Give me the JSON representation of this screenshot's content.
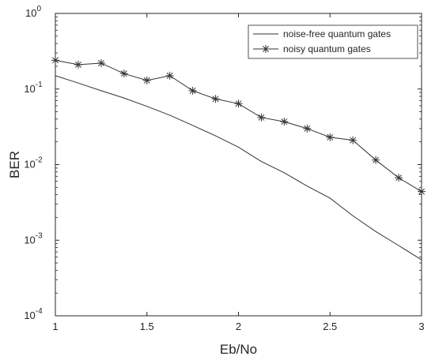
{
  "chart_data": {
    "type": "line",
    "xlabel": "Eb/No",
    "ylabel": "BER",
    "xlim": [
      1,
      3
    ],
    "ylim": [
      0.0001,
      1
    ],
    "yscale": "log",
    "grid": false,
    "legend_position": "top-right",
    "x_ticks": [
      1,
      1.5,
      2,
      2.5,
      3
    ],
    "x_tick_labels": [
      "1",
      "1.5",
      "2",
      "2.5",
      "3"
    ],
    "y_ticks": [
      0.0001,
      0.001,
      0.01,
      0.1,
      1
    ],
    "y_tick_labels": [
      {
        "base": "10",
        "exp": "-4"
      },
      {
        "base": "10",
        "exp": "-3"
      },
      {
        "base": "10",
        "exp": "-2"
      },
      {
        "base": "10",
        "exp": "-1"
      },
      {
        "base": "10",
        "exp": "0"
      }
    ],
    "series": [
      {
        "name": "noise-free quantum gates",
        "color": "#333333",
        "marker": "none",
        "x": [
          1,
          1.125,
          1.25,
          1.375,
          1.5,
          1.625,
          1.75,
          1.875,
          2,
          2.125,
          2.25,
          2.375,
          2.5,
          2.625,
          2.75,
          2.875,
          3
        ],
        "y": [
          0.15,
          0.12,
          0.095,
          0.076,
          0.059,
          0.045,
          0.033,
          0.024,
          0.017,
          0.011,
          0.0078,
          0.0052,
          0.0036,
          0.0021,
          0.0013,
          0.00085,
          0.00055
        ]
      },
      {
        "name": "noisy quantum gates",
        "color": "#333333",
        "marker": "asterisk",
        "x": [
          1,
          1.125,
          1.25,
          1.375,
          1.5,
          1.625,
          1.75,
          1.875,
          2,
          2.125,
          2.25,
          2.375,
          2.5,
          2.625,
          2.75,
          2.875,
          3
        ],
        "y": [
          0.24,
          0.21,
          0.22,
          0.16,
          0.13,
          0.15,
          0.095,
          0.074,
          0.064,
          0.042,
          0.037,
          0.03,
          0.023,
          0.021,
          0.0115,
          0.0067,
          0.0044
        ]
      }
    ]
  }
}
